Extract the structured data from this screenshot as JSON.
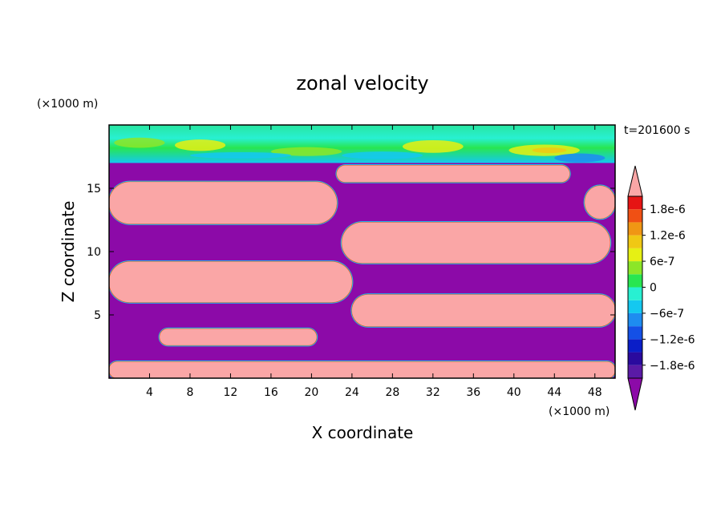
{
  "chart_data": {
    "type": "heatmap",
    "title": "zonal velocity",
    "time_label": "t=201600 s",
    "xlabel": "X coordinate",
    "ylabel": "Z coordinate",
    "x_unit": "(×1000 m)",
    "y_unit": "(×1000 m)",
    "xlim": [
      0,
      50
    ],
    "ylim": [
      0,
      20
    ],
    "x_ticks": [
      4,
      8,
      12,
      16,
      20,
      24,
      28,
      32,
      36,
      40,
      44,
      48
    ],
    "x_tick_labels": [
      "4",
      "8",
      "12",
      "16",
      "20",
      "24",
      "28",
      "32",
      "36",
      "40",
      "44",
      "48"
    ],
    "y_ticks": [
      5,
      10,
      15
    ],
    "y_tick_labels": [
      "5",
      "10",
      "15"
    ],
    "colorbar": {
      "levels": [
        -2.1e-06,
        -1.8e-06,
        -1.5e-06,
        -1.2e-06,
        -9e-07,
        -6e-07,
        -3e-07,
        0,
        3e-07,
        6e-07,
        9e-07,
        1.2e-06,
        1.5e-06,
        1.8e-06,
        2.1e-06
      ],
      "colors": [
        "#5a1aa6",
        "#2a0a9e",
        "#0a1ec8",
        "#1450e6",
        "#1e8cf0",
        "#14c8f0",
        "#28f0d2",
        "#28e650",
        "#8ce628",
        "#e6f014",
        "#f0c814",
        "#f09614",
        "#f05014",
        "#e61414"
      ],
      "under_color": "#8c0aa8",
      "over_color": "#faa6a6",
      "labels": [
        {
          "value": 1.8e-06,
          "text": "1.8e-6"
        },
        {
          "value": 1.2e-06,
          "text": "1.2e-6"
        },
        {
          "value": 6e-07,
          "text": "6e-7"
        },
        {
          "value": 0,
          "text": "0"
        },
        {
          "value": -6e-07,
          "text": "−6e-7"
        },
        {
          "value": -1.2e-06,
          "text": "−1.2e-6"
        },
        {
          "value": -1.8e-06,
          "text": "−1.8e-6"
        }
      ]
    },
    "regions": [
      {
        "sign": "negative",
        "x": [
          0,
          50
        ],
        "z": [
          1,
          17
        ]
      },
      {
        "sign": "positive",
        "x": [
          0,
          50
        ],
        "z": [
          0,
          1.3
        ]
      },
      {
        "sign": "positive",
        "x": [
          5,
          20.5
        ],
        "z": [
          2.6,
          3.9
        ]
      },
      {
        "sign": "positive",
        "x": [
          0,
          24
        ],
        "z": [
          6,
          9.2
        ]
      },
      {
        "sign": "positive",
        "x": [
          24,
          50
        ],
        "z": [
          4.1,
          6.6
        ]
      },
      {
        "sign": "positive",
        "x": [
          0,
          22.5
        ],
        "z": [
          12.2,
          15.5
        ]
      },
      {
        "sign": "positive",
        "x": [
          23,
          49.5
        ],
        "z": [
          9.1,
          12.3
        ]
      },
      {
        "sign": "positive",
        "x": [
          22.5,
          45.5
        ],
        "z": [
          15.5,
          16.8
        ]
      },
      {
        "sign": "positive",
        "x": [
          47,
          50
        ],
        "z": [
          12.6,
          15.2
        ]
      },
      {
        "sign": "weak_mixed",
        "x": [
          0,
          50
        ],
        "z": [
          17,
          20
        ]
      }
    ]
  }
}
